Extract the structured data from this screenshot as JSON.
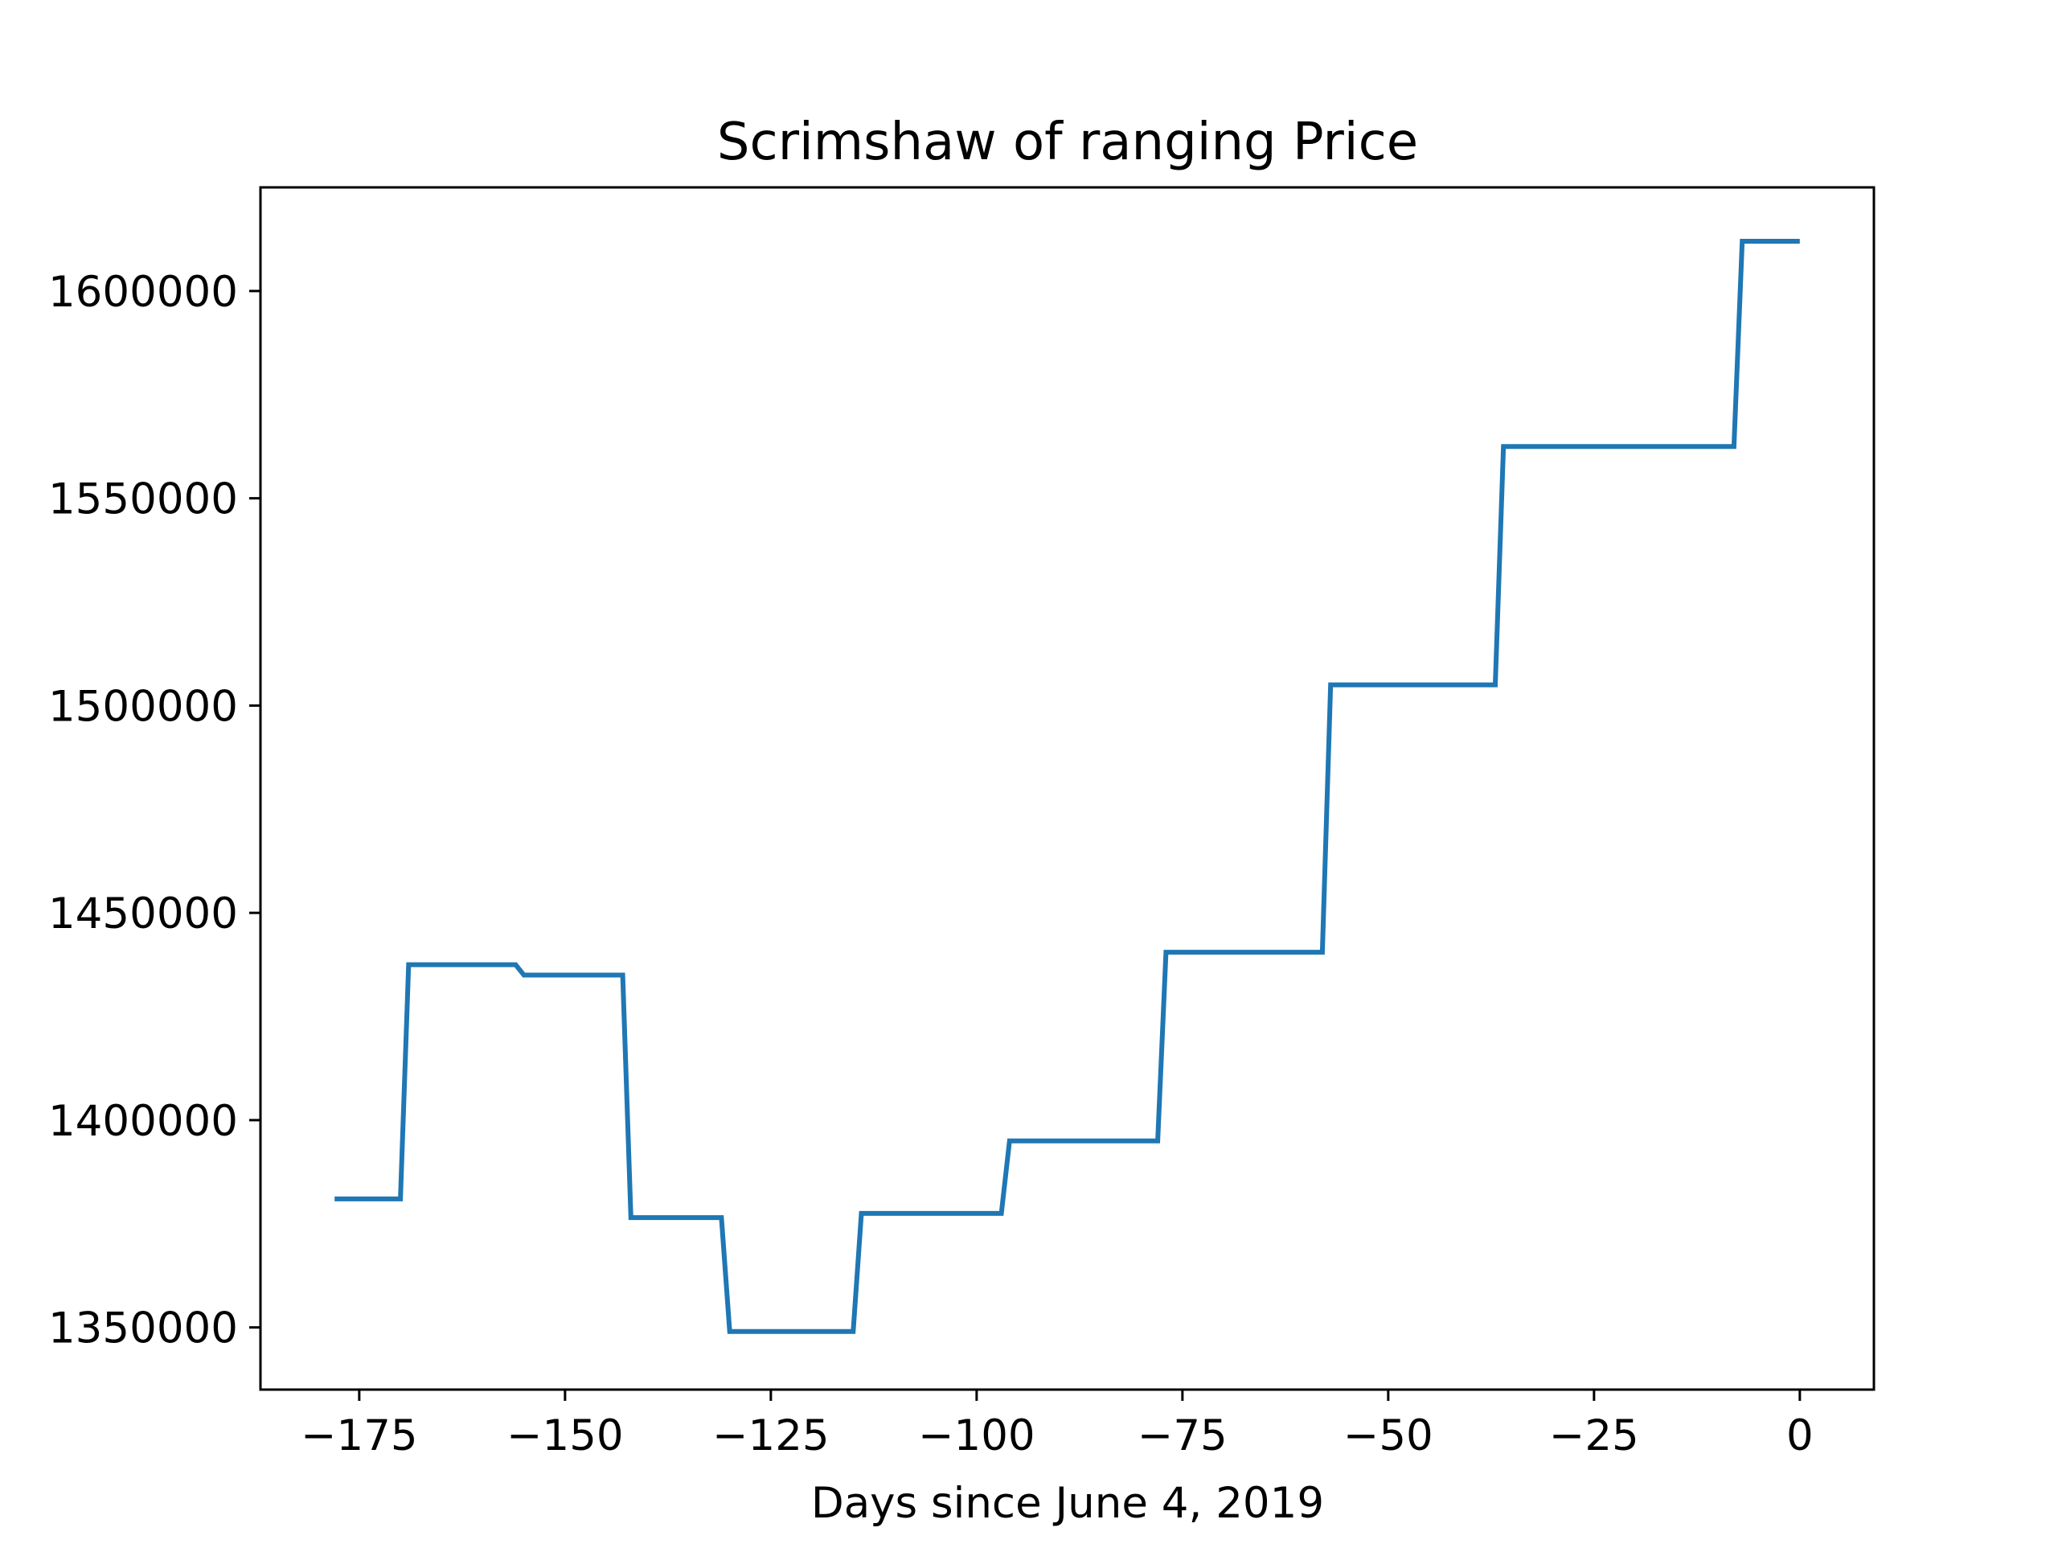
{
  "chart_data": {
    "type": "line",
    "title": "Scrimshaw of ranging Price",
    "xlabel": "Days since June 4, 2019",
    "ylabel": "",
    "xlim": [
      -187,
      9
    ],
    "ylim": [
      1335000,
      1625000
    ],
    "grid": false,
    "legend": "none",
    "x_ticks": [
      -175,
      -150,
      -125,
      -100,
      -75,
      -50,
      -25,
      0
    ],
    "x_tick_labels": [
      "−175",
      "−150",
      "−125",
      "−100",
      "−75",
      "−50",
      "−25",
      "0"
    ],
    "y_ticks": [
      1350000,
      1400000,
      1450000,
      1500000,
      1550000,
      1600000
    ],
    "y_tick_labels": [
      "1350000",
      "1400000",
      "1450000",
      "1500000",
      "1550000",
      "1600000"
    ],
    "series": [
      {
        "color": "#1f77b4",
        "x": [
          -178,
          -170,
          -169,
          -156,
          -155,
          -143,
          -142,
          -131,
          -130,
          -115,
          -114,
          -97,
          -96,
          -78,
          -77,
          -58,
          -57,
          -37,
          -36,
          -8,
          -7,
          0
        ],
        "y": [
          1381000,
          1381000,
          1437500,
          1437500,
          1435000,
          1435000,
          1376500,
          1376500,
          1349000,
          1349000,
          1377500,
          1377500,
          1395000,
          1395000,
          1440500,
          1440500,
          1505000,
          1505000,
          1562500,
          1562500,
          1612000,
          1612000
        ]
      }
    ]
  }
}
